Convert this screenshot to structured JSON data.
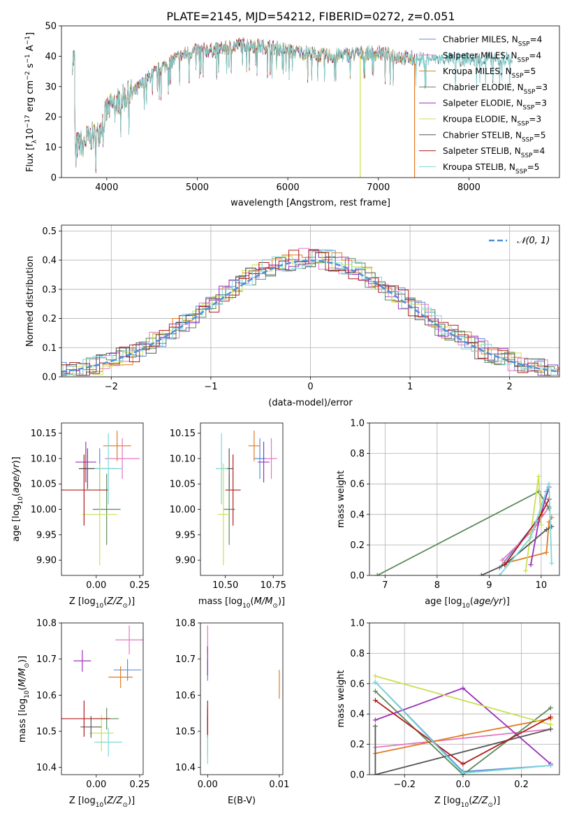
{
  "figure_title": "PLATE=2145, MJD=54212, FIBERID=0272, z=0.051",
  "models": [
    {
      "name": "Chabrier MILES",
      "n": "4",
      "color": "#5b8bd8"
    },
    {
      "name": "Salpeter MILES",
      "n": "4",
      "color": "#e377c2"
    },
    {
      "name": "Kroupa MILES",
      "n": "5",
      "color": "#e07b20"
    },
    {
      "name": "Chabrier ELODIE",
      "n": "3",
      "color": "#5a8a5a"
    },
    {
      "name": "Salpeter ELODIE",
      "n": "3",
      "color": "#9a30b8"
    },
    {
      "name": "Kroupa ELODIE",
      "n": "3",
      "color": "#c8e050"
    },
    {
      "name": "Chabrier STELIB",
      "n": "5",
      "color": "#555555"
    },
    {
      "name": "Salpeter STELIB",
      "n": "4",
      "color": "#b01a1a"
    },
    {
      "name": "Kroupa STELIB",
      "n": "5",
      "color": "#7ed8d8"
    }
  ],
  "chart_data": [
    {
      "type": "line",
      "id": "spectrum",
      "xlabel": "wavelength [Angstrom, rest frame]",
      "ylabel": "Flux [f_λ10^-17 erg cm^-2 s^-1 A^-1]",
      "xlim": [
        3500,
        9000
      ],
      "ylim": [
        0,
        50
      ],
      "xticks": [
        4000,
        5000,
        6000,
        7000,
        8000
      ],
      "yticks": [
        0,
        10,
        20,
        30,
        40,
        50
      ],
      "grid": false,
      "legend": "top-right",
      "continuum": {
        "x": [
          3650,
          3800,
          3900,
          4000,
          4100,
          4300,
          4500,
          4800,
          5000,
          5200,
          5500,
          5800,
          6000,
          6200,
          6500,
          6800,
          7000,
          7200,
          7400
        ],
        "y": [
          10,
          13,
          14,
          22,
          25,
          28,
          34,
          40,
          42,
          42,
          44,
          43,
          42,
          41,
          40,
          41,
          41,
          40,
          39
        ]
      }
    },
    {
      "type": "bar",
      "id": "residuals",
      "xlabel": "(data-model)/error",
      "ylabel": "Normed distribution",
      "xlim": [
        -2.5,
        2.5
      ],
      "ylim": [
        0,
        0.52
      ],
      "xticks": [
        -2,
        -1,
        0,
        1,
        2
      ],
      "yticks": [
        0.0,
        0.1,
        0.2,
        0.3,
        0.4,
        0.5
      ],
      "grid": true,
      "legend": "top-right",
      "reference_label": "𝒩(0, 1)",
      "reference_color": "#4a90d9"
    },
    {
      "type": "scatter",
      "id": "age-vs-Z",
      "xlabel": "Z [log10(Z/Z⊙)]",
      "ylabel": "age [log10(age/yr)]",
      "xlim": [
        -0.2,
        0.27
      ],
      "ylim": [
        9.87,
        10.17
      ],
      "xticks": [
        0.0,
        0.25
      ],
      "yticks": [
        9.9,
        9.95,
        10.0,
        10.05,
        10.1,
        10.15
      ],
      "grid": false,
      "points": [
        {
          "x": 0.02,
          "y": 10.08,
          "xerr": 0.1,
          "yerr": 0.04,
          "m": 0
        },
        {
          "x": 0.15,
          "y": 10.1,
          "xerr": 0.1,
          "yerr": 0.04,
          "m": 1
        },
        {
          "x": 0.12,
          "y": 10.125,
          "xerr": 0.08,
          "yerr": 0.03,
          "m": 2
        },
        {
          "x": 0.06,
          "y": 10.0,
          "xerr": 0.08,
          "yerr": 0.07,
          "m": 3
        },
        {
          "x": -0.06,
          "y": 10.093,
          "xerr": 0.06,
          "yerr": 0.04,
          "m": 4
        },
        {
          "x": 0.02,
          "y": 9.99,
          "xerr": 0.1,
          "yerr": 0.1,
          "m": 5
        },
        {
          "x": -0.05,
          "y": 10.08,
          "xerr": 0.05,
          "yerr": 0.04,
          "m": 6
        },
        {
          "x": -0.07,
          "y": 10.038,
          "xerr": 0.14,
          "yerr": 0.07,
          "m": 7
        },
        {
          "x": 0.07,
          "y": 10.08,
          "xerr": 0.08,
          "yerr": 0.07,
          "m": 8
        }
      ]
    },
    {
      "type": "scatter",
      "id": "age-vs-mass",
      "xlabel": "mass [log10(M/M⊙)]",
      "ylabel": "",
      "xlim": [
        10.37,
        10.8
      ],
      "ylim": [
        9.87,
        10.17
      ],
      "xticks": [
        10.5,
        10.75
      ],
      "yticks": [
        9.9,
        9.95,
        10.0,
        10.05,
        10.1,
        10.15
      ],
      "grid": false,
      "points": [
        {
          "x": 10.68,
          "y": 10.1,
          "xerr": 0.03,
          "yerr": 0.04,
          "m": 0
        },
        {
          "x": 10.74,
          "y": 10.1,
          "xerr": 0.03,
          "yerr": 0.04,
          "m": 1
        },
        {
          "x": 10.65,
          "y": 10.125,
          "xerr": 0.03,
          "yerr": 0.03,
          "m": 2
        },
        {
          "x": 10.52,
          "y": 10.0,
          "xerr": 0.03,
          "yerr": 0.07,
          "m": 3
        },
        {
          "x": 10.7,
          "y": 10.093,
          "xerr": 0.03,
          "yerr": 0.04,
          "m": 4
        },
        {
          "x": 10.49,
          "y": 9.99,
          "xerr": 0.03,
          "yerr": 0.1,
          "m": 5
        },
        {
          "x": 10.52,
          "y": 10.08,
          "xerr": 0.02,
          "yerr": 0.04,
          "m": 6
        },
        {
          "x": 10.54,
          "y": 10.038,
          "xerr": 0.04,
          "yerr": 0.07,
          "m": 7
        },
        {
          "x": 10.48,
          "y": 10.08,
          "xerr": 0.03,
          "yerr": 0.07,
          "m": 8
        }
      ]
    },
    {
      "type": "line",
      "id": "massweight-vs-age",
      "xlabel": "age [log10(age/yr)]",
      "ylabel": "mass weight",
      "xlim": [
        6.7,
        10.35
      ],
      "ylim": [
        0,
        1
      ],
      "xticks": [
        7,
        8,
        9,
        10
      ],
      "yticks": [
        0.0,
        0.2,
        0.4,
        0.6,
        0.8,
        1.0
      ],
      "grid": true,
      "series": [
        {
          "m": 0,
          "x": [
            9.2,
            9.9,
            10.1,
            10.15
          ],
          "y": [
            0.05,
            0.35,
            0.55,
            0.6
          ]
        },
        {
          "m": 1,
          "x": [
            9.25,
            9.85,
            10.15
          ],
          "y": [
            0.1,
            0.3,
            0.45
          ]
        },
        {
          "m": 2,
          "x": [
            9.3,
            10.1,
            10.15,
            10.2
          ],
          "y": [
            0.08,
            0.15,
            0.35,
            0.38
          ]
        },
        {
          "m": 3,
          "x": [
            6.85,
            9.95,
            10.15
          ],
          "y": [
            0.0,
            0.55,
            0.44
          ]
        },
        {
          "m": 4,
          "x": [
            9.8,
            9.95,
            10.15
          ],
          "y": [
            0.07,
            0.35,
            0.58
          ]
        },
        {
          "m": 5,
          "x": [
            9.7,
            9.95,
            10.0
          ],
          "y": [
            0.03,
            0.65,
            0.33
          ]
        },
        {
          "m": 6,
          "x": [
            8.85,
            9.3,
            10.1,
            10.2
          ],
          "y": [
            0.0,
            0.07,
            0.3,
            0.32
          ]
        },
        {
          "m": 7,
          "x": [
            9.3,
            10.0,
            10.15
          ],
          "y": [
            0.07,
            0.4,
            0.5
          ]
        },
        {
          "m": 8,
          "x": [
            9.2,
            9.8,
            10.15,
            10.2
          ],
          "y": [
            0.0,
            0.25,
            0.6,
            0.08
          ]
        }
      ]
    },
    {
      "type": "scatter",
      "id": "mass-vs-Z",
      "xlabel": "Z [log10(Z/Z⊙)]",
      "ylabel": "mass [log10(M/M⊙)]",
      "xlim": [
        -0.2,
        0.27
      ],
      "ylim": [
        10.38,
        10.8
      ],
      "xticks": [
        0.0,
        0.25
      ],
      "yticks": [
        10.4,
        10.5,
        10.6,
        10.7,
        10.8
      ],
      "grid": false,
      "points": [
        {
          "x": 0.18,
          "y": 10.67,
          "xerr": 0.08,
          "yerr": 0.03,
          "m": 0
        },
        {
          "x": 0.19,
          "y": 10.753,
          "xerr": 0.08,
          "yerr": 0.04,
          "m": 1
        },
        {
          "x": 0.14,
          "y": 10.65,
          "xerr": 0.07,
          "yerr": 0.03,
          "m": 2
        },
        {
          "x": 0.06,
          "y": 10.535,
          "xerr": 0.07,
          "yerr": 0.03,
          "m": 3
        },
        {
          "x": -0.08,
          "y": 10.695,
          "xerr": 0.05,
          "yerr": 0.03,
          "m": 4
        },
        {
          "x": 0.03,
          "y": 10.495,
          "xerr": 0.07,
          "yerr": 0.05,
          "m": 5
        },
        {
          "x": -0.03,
          "y": 10.512,
          "xerr": 0.06,
          "yerr": 0.03,
          "m": 6
        },
        {
          "x": -0.07,
          "y": 10.535,
          "xerr": 0.15,
          "yerr": 0.05,
          "m": 7
        },
        {
          "x": 0.07,
          "y": 10.47,
          "xerr": 0.08,
          "yerr": 0.04,
          "m": 8
        }
      ]
    },
    {
      "type": "scatter",
      "id": "mass-vs-EBV",
      "xlabel": "E(B-V)",
      "ylabel": "",
      "xlim": [
        -0.001,
        0.0105
      ],
      "ylim": [
        10.38,
        10.8
      ],
      "xticks": [
        0.0,
        0.01
      ],
      "yticks": [
        10.4,
        10.5,
        10.6,
        10.7,
        10.8
      ],
      "grid": false,
      "points": [
        {
          "x": 0.0,
          "y": 10.67,
          "xerr": 0,
          "yerr": 0.03,
          "m": 0
        },
        {
          "x": 0.0,
          "y": 10.753,
          "xerr": 0,
          "yerr": 0.04,
          "m": 1
        },
        {
          "x": 0.01,
          "y": 10.63,
          "xerr": 0,
          "yerr": 0.04,
          "m": 2
        },
        {
          "x": 0.0,
          "y": 10.535,
          "xerr": 0,
          "yerr": 0.03,
          "m": 3
        },
        {
          "x": 0.0,
          "y": 10.695,
          "xerr": 0,
          "yerr": 0.04,
          "m": 4
        },
        {
          "x": 0.0,
          "y": 10.48,
          "xerr": 0,
          "yerr": 0.05,
          "m": 5
        },
        {
          "x": 0.0,
          "y": 10.512,
          "xerr": 0,
          "yerr": 0.03,
          "m": 6
        },
        {
          "x": 0.0,
          "y": 10.535,
          "xerr": 0,
          "yerr": 0.05,
          "m": 7
        },
        {
          "x": 0.0,
          "y": 10.45,
          "xerr": 0,
          "yerr": 0.04,
          "m": 8
        }
      ]
    },
    {
      "type": "line",
      "id": "massweight-vs-Z",
      "xlabel": "Z [log10(Z/Z⊙)]",
      "ylabel": "mass weight",
      "xlim": [
        -0.32,
        0.33
      ],
      "ylim": [
        0,
        1
      ],
      "xticks": [
        -0.2,
        0.0,
        0.2
      ],
      "yticks": [
        0.0,
        0.2,
        0.4,
        0.6,
        0.8,
        1.0
      ],
      "grid": true,
      "series": [
        {
          "m": 0,
          "x": [
            -0.3,
            0.0,
            0.3
          ],
          "y": [
            0.61,
            0.02,
            0.06
          ]
        },
        {
          "m": 1,
          "x": [
            -0.3,
            0.3
          ],
          "y": [
            0.18,
            0.3
          ]
        },
        {
          "m": 2,
          "x": [
            -0.3,
            0.0,
            0.3
          ],
          "y": [
            0.14,
            0.26,
            0.37
          ]
        },
        {
          "m": 3,
          "x": [
            -0.3,
            0.0,
            0.3
          ],
          "y": [
            0.55,
            0.0,
            0.44
          ]
        },
        {
          "m": 4,
          "x": [
            -0.3,
            0.0,
            0.3
          ],
          "y": [
            0.36,
            0.57,
            0.07
          ]
        },
        {
          "m": 5,
          "x": [
            -0.3,
            0.3
          ],
          "y": [
            0.65,
            0.33
          ]
        },
        {
          "m": 6,
          "x": [
            -0.3,
            -0.3,
            0.3
          ],
          "y": [
            0.32,
            0.0,
            0.3
          ]
        },
        {
          "m": 7,
          "x": [
            -0.3,
            0.0,
            0.3
          ],
          "y": [
            0.49,
            0.07,
            0.38
          ]
        },
        {
          "m": 8,
          "x": [
            -0.3,
            0.0,
            0.3
          ],
          "y": [
            0.61,
            0.01,
            0.06
          ]
        }
      ]
    }
  ]
}
